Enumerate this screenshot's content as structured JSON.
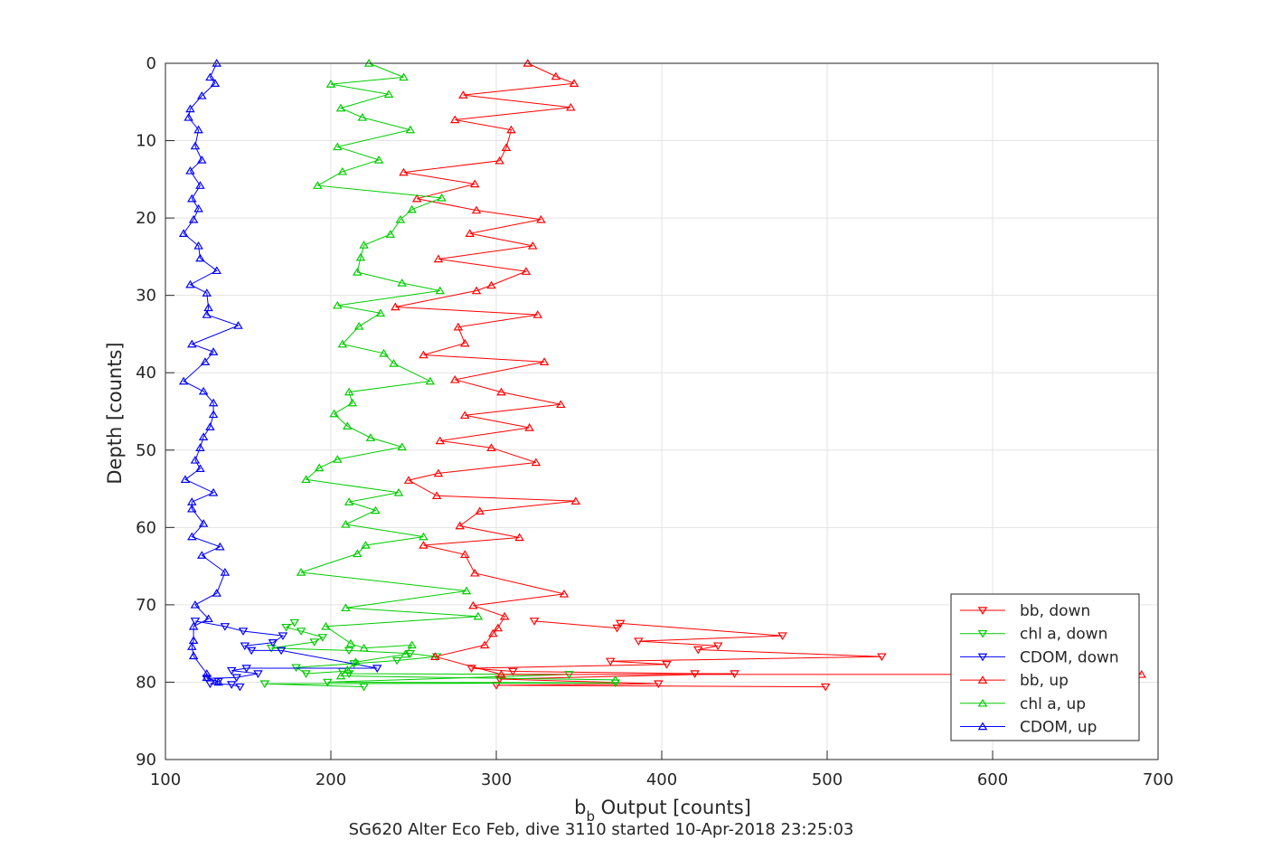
{
  "chart_data": {
    "type": "line",
    "title": "SG620 Alter Eco Feb, dive 3110 started 10-Apr-2018 23:25:03",
    "xlabel_main": "b",
    "xlabel_sub": "b",
    "xlabel_rest": " Output [counts]",
    "ylabel": "Depth [counts]",
    "xlim": [
      100,
      700
    ],
    "ylim": [
      0,
      90
    ],
    "y_reversed": true,
    "grid": true,
    "legend_position": "lower-right",
    "xticks": [
      100,
      200,
      300,
      400,
      500,
      600,
      700
    ],
    "yticks": [
      0,
      10,
      20,
      30,
      40,
      50,
      60,
      70,
      80,
      90
    ],
    "series": [
      {
        "name": "bb, down",
        "color": "#ff0000",
        "marker": "triangle-down",
        "x": [
          323,
          373,
          375,
          473,
          386,
          434,
          422,
          533,
          369,
          403,
          285,
          310,
          420,
          444,
          302,
          398,
          300,
          499
        ],
        "y": [
          72.1,
          73.0,
          72.4,
          74.0,
          74.7,
          75.3,
          75.8,
          76.7,
          77.3,
          77.7,
          78.2,
          78.6,
          78.9,
          78.9,
          79.6,
          80.2,
          80.4,
          80.6
        ]
      },
      {
        "name": "chl a, down",
        "color": "#00cc00",
        "marker": "triangle-down",
        "x": [
          178,
          173,
          182,
          195,
          190,
          164,
          211,
          248,
          264,
          240,
          214,
          179,
          185,
          207,
          211,
          344,
          198,
          372,
          160,
          220
        ],
        "y": [
          72.3,
          72.9,
          73.4,
          74.2,
          74.8,
          75.6,
          75.9,
          76.3,
          76.7,
          77.2,
          77.6,
          78.1,
          78.9,
          78.6,
          78.9,
          79.0,
          80.0,
          80.1,
          80.2,
          80.6
        ]
      },
      {
        "name": "CDOM, down",
        "color": "#0000ff",
        "marker": "triangle-down",
        "x": [
          118,
          136,
          147,
          171,
          165,
          148,
          152,
          170,
          228,
          149,
          140,
          156,
          143,
          125,
          132,
          127,
          140,
          145
        ],
        "y": [
          72.1,
          72.8,
          73.4,
          74.0,
          74.9,
          75.3,
          75.9,
          75.9,
          78.2,
          78.2,
          78.5,
          78.9,
          79.4,
          79.5,
          79.9,
          80.2,
          80.3,
          80.6
        ]
      },
      {
        "name": "bb, up",
        "color": "#ff0000",
        "marker": "triangle-up",
        "x": [
          319,
          336,
          347,
          280,
          345,
          275,
          309,
          306,
          302,
          244,
          287,
          252,
          288,
          327,
          284,
          322,
          265,
          318,
          297,
          288,
          239,
          325,
          277,
          281,
          256,
          329,
          275,
          303,
          339,
          281,
          320,
          266,
          297,
          324,
          265,
          247,
          264,
          348,
          290,
          278,
          314,
          256,
          281,
          287,
          341,
          286,
          305,
          301,
          298,
          293,
          263,
          303,
          690
        ],
        "y": [
          0.0,
          1.7,
          2.6,
          4.1,
          5.7,
          7.3,
          8.6,
          10.9,
          12.6,
          14.1,
          15.6,
          17.5,
          19.0,
          20.2,
          22.0,
          23.6,
          25.3,
          26.9,
          28.7,
          29.4,
          31.5,
          32.5,
          34.1,
          36.2,
          37.7,
          38.6,
          40.9,
          42.5,
          44.1,
          45.5,
          47.1,
          48.8,
          49.7,
          51.6,
          53.0,
          53.9,
          55.9,
          56.6,
          57.9,
          59.8,
          61.3,
          62.3,
          63.5,
          65.9,
          68.6,
          70.1,
          71.5,
          73.0,
          73.7,
          75.2,
          76.7,
          79.0,
          79.0
        ]
      },
      {
        "name": "chl a, up",
        "color": "#00cc00",
        "marker": "triangle-up",
        "x": [
          223,
          244,
          200,
          235,
          206,
          219,
          248,
          204,
          229,
          207,
          192,
          267,
          249,
          242,
          236,
          220,
          218,
          216,
          243,
          266,
          204,
          230,
          217,
          207,
          232,
          238,
          260,
          211,
          213,
          202,
          210,
          224,
          243,
          204,
          193,
          185,
          241,
          211,
          227,
          209,
          256,
          221,
          216,
          182,
          282,
          209,
          289,
          197,
          212,
          220,
          249,
          245,
          215,
          210,
          206,
          372
        ],
        "y": [
          0.0,
          1.8,
          2.7,
          4.0,
          5.8,
          7.0,
          8.6,
          10.8,
          12.5,
          14.0,
          15.8,
          17.4,
          18.9,
          20.2,
          22.1,
          23.5,
          25.1,
          27.0,
          28.4,
          29.4,
          31.3,
          32.3,
          34.0,
          36.3,
          37.5,
          38.8,
          41.1,
          42.5,
          43.9,
          45.3,
          46.9,
          48.4,
          49.6,
          51.2,
          52.3,
          53.8,
          55.5,
          56.7,
          57.8,
          59.6,
          61.2,
          62.3,
          63.4,
          65.8,
          68.2,
          70.4,
          71.5,
          72.8,
          75.0,
          75.6,
          75.2,
          76.4,
          77.4,
          78.4,
          79.2,
          79.7
        ]
      },
      {
        "name": "CDOM, up",
        "color": "#0000ff",
        "marker": "triangle-up",
        "x": [
          131,
          127,
          130,
          122,
          115,
          114,
          120,
          118,
          122,
          115,
          121,
          116,
          120,
          117,
          111,
          120,
          121,
          131,
          115,
          125,
          126,
          125,
          144,
          116,
          129,
          124,
          111,
          123,
          129,
          129,
          127,
          123,
          121,
          118,
          121,
          112,
          129,
          116,
          116,
          123,
          116,
          133,
          122,
          136,
          131,
          118,
          126,
          117,
          117,
          116,
          117,
          125,
          125,
          132
        ],
        "y": [
          0.0,
          1.8,
          2.6,
          4.2,
          5.9,
          7.0,
          8.6,
          10.7,
          12.5,
          13.9,
          15.8,
          17.5,
          18.8,
          20.2,
          22.0,
          23.6,
          25.2,
          26.8,
          28.6,
          29.7,
          31.6,
          32.5,
          33.9,
          36.3,
          37.3,
          38.6,
          41.1,
          42.4,
          43.9,
          45.4,
          47.0,
          48.3,
          49.7,
          51.3,
          52.4,
          53.8,
          55.5,
          56.7,
          57.6,
          59.5,
          61.2,
          62.5,
          63.6,
          65.8,
          68.5,
          70.0,
          71.8,
          72.8,
          74.6,
          75.4,
          76.6,
          78.9,
          79.4,
          80.0
        ]
      }
    ]
  }
}
